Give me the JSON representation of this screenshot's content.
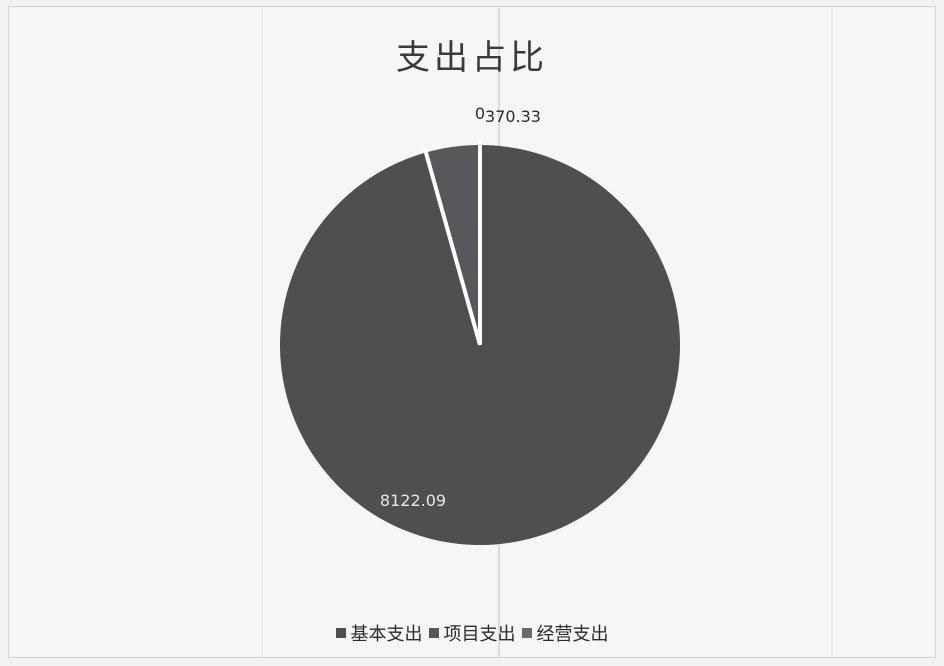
{
  "chart_data": {
    "type": "pie",
    "title": "支出占比",
    "categories": [
      "基本支出",
      "项目支出",
      "经营支出"
    ],
    "values": [
      8122.09,
      370.33,
      0
    ],
    "data_labels": [
      "8122.09",
      "370.33",
      "0"
    ],
    "legend_position": "bottom",
    "colors": {
      "基本支出": "#4f4f52",
      "项目支出": "#58585c",
      "经营支出": "#6a6a6d",
      "separator": "#ffffff"
    }
  }
}
